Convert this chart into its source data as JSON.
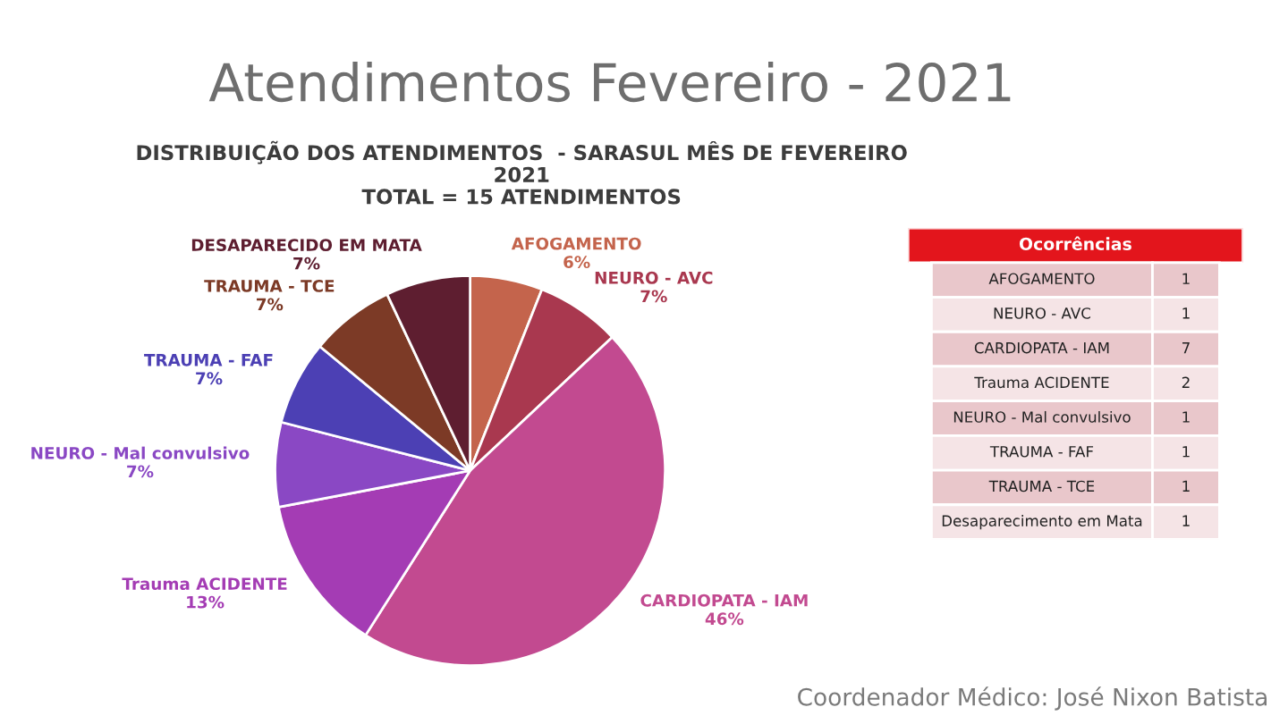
{
  "chart_data": [
    {
      "type": "pie",
      "title": "Atendimentos Fevereiro - 2021",
      "subtitle": "DISTRIBUIÇÃO DOS ATENDIMENTOS  - SARASUL MÊS DE FEVEREIRO\n2021\nTOTAL = 15 ATENDIMENTOS",
      "categories": [
        "AFOGAMENTO",
        "NEURO - AVC",
        "CARDIOPATA - IAM",
        "Trauma ACIDENTE",
        "NEURO - Mal convulsivo",
        "TRAUMA - FAF",
        "TRAUMA - TCE",
        "DESAPARECIDO EM MATA"
      ],
      "values": [
        6,
        7,
        46,
        13,
        7,
        7,
        7,
        7
      ],
      "value_labels": [
        "6%",
        "7%",
        "46%",
        "13%",
        "7%",
        "7%",
        "7%",
        "7%"
      ],
      "colors": [
        "#c4644c",
        "#a9384f",
        "#c24a90",
        "#a43cb4",
        "#8a48c4",
        "#4c40b4",
        "#7c3a26",
        "#5e1e30"
      ],
      "annotations": [
        "Coordenador Médico: José Nixon Batista"
      ]
    },
    {
      "type": "other",
      "title": "Ocorrências",
      "categories": [
        "AFOGAMENTO",
        "NEURO - AVC",
        "CARDIOPATA - IAM",
        "Trauma ACIDENTE",
        "NEURO - Mal convulsivo",
        "TRAUMA - FAF",
        "TRAUMA - TCE",
        "Desaparecimento em Mata"
      ],
      "values": [
        1,
        1,
        7,
        2,
        1,
        1,
        1,
        1
      ],
      "data_labels": true
    }
  ]
}
